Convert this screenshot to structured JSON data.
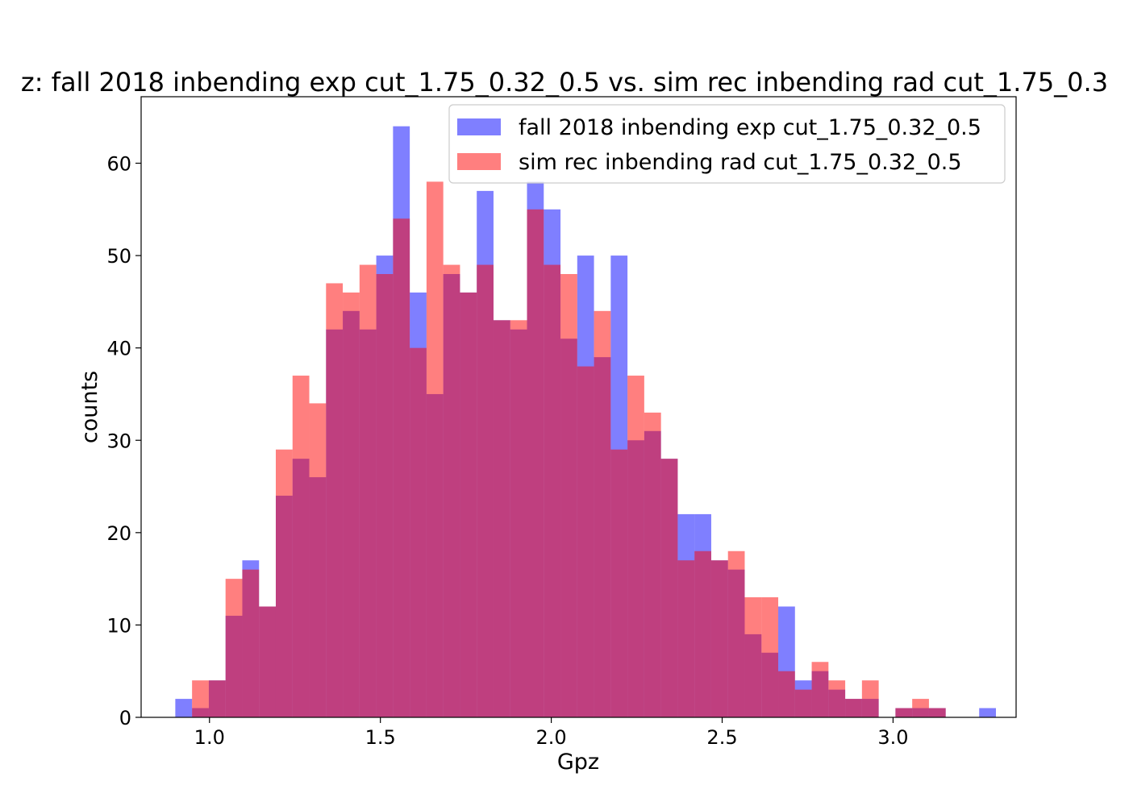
{
  "chart_data": {
    "type": "bar",
    "subtype": "histogram-overlay",
    "title": "z: fall 2018 inbending exp cut_1.75_0.32_0.5 vs. sim rec inbending rad cut_1.75_0.3",
    "xlabel": "Gpz",
    "ylabel": "counts",
    "xlim": [
      0.8,
      3.36
    ],
    "ylim": [
      0,
      67.2
    ],
    "xticks": [
      1.0,
      1.5,
      2.0,
      2.5,
      3.0
    ],
    "xtick_labels": [
      "1.0",
      "1.5",
      "2.0",
      "2.5",
      "3.0"
    ],
    "yticks": [
      0,
      10,
      20,
      30,
      40,
      50,
      60
    ],
    "ytick_labels": [
      "0",
      "10",
      "20",
      "30",
      "40",
      "50",
      "60"
    ],
    "grid": false,
    "legend_position": "top-right",
    "bin_edges": [
      0.9,
      0.949,
      0.998,
      1.047,
      1.096,
      1.145,
      1.194,
      1.243,
      1.292,
      1.341,
      1.39,
      1.439,
      1.488,
      1.537,
      1.586,
      1.635,
      1.684,
      1.733,
      1.782,
      1.831,
      1.88,
      1.929,
      1.978,
      2.027,
      2.076,
      2.125,
      2.174,
      2.223,
      2.272,
      2.321,
      2.37,
      2.419,
      2.468,
      2.517,
      2.566,
      2.615,
      2.664,
      2.713,
      2.762,
      2.811,
      2.86,
      2.909,
      2.958,
      3.007,
      3.056,
      3.105,
      3.154,
      3.203,
      3.252,
      3.301
    ],
    "series": [
      {
        "name": "fall 2018 inbending exp cut_1.75_0.32_0.5",
        "color": "#0000ff",
        "opacity": 0.5,
        "values": [
          2,
          1,
          4,
          11,
          17,
          12,
          24,
          28,
          26,
          42,
          44,
          42,
          50,
          64,
          46,
          35,
          48,
          46,
          57,
          43,
          42,
          58,
          55,
          41,
          50,
          39,
          50,
          30,
          31,
          28,
          22,
          22,
          17,
          16,
          9,
          7,
          12,
          4,
          5,
          3,
          2,
          2,
          0,
          1,
          1,
          1,
          0,
          0,
          1
        ]
      },
      {
        "name": "sim rec inbending rad cut_1.75_0.32_0.5",
        "color": "#ff0000",
        "opacity": 0.5,
        "values": [
          0,
          4,
          4,
          15,
          16,
          12,
          29,
          37,
          34,
          47,
          46,
          49,
          48,
          54,
          40,
          58,
          49,
          46,
          49,
          43,
          43,
          55,
          49,
          48,
          38,
          44,
          29,
          37,
          33,
          28,
          17,
          18,
          17,
          18,
          13,
          13,
          5,
          3,
          6,
          4,
          2,
          4,
          0,
          1,
          2,
          1,
          0,
          0,
          0
        ]
      }
    ]
  }
}
